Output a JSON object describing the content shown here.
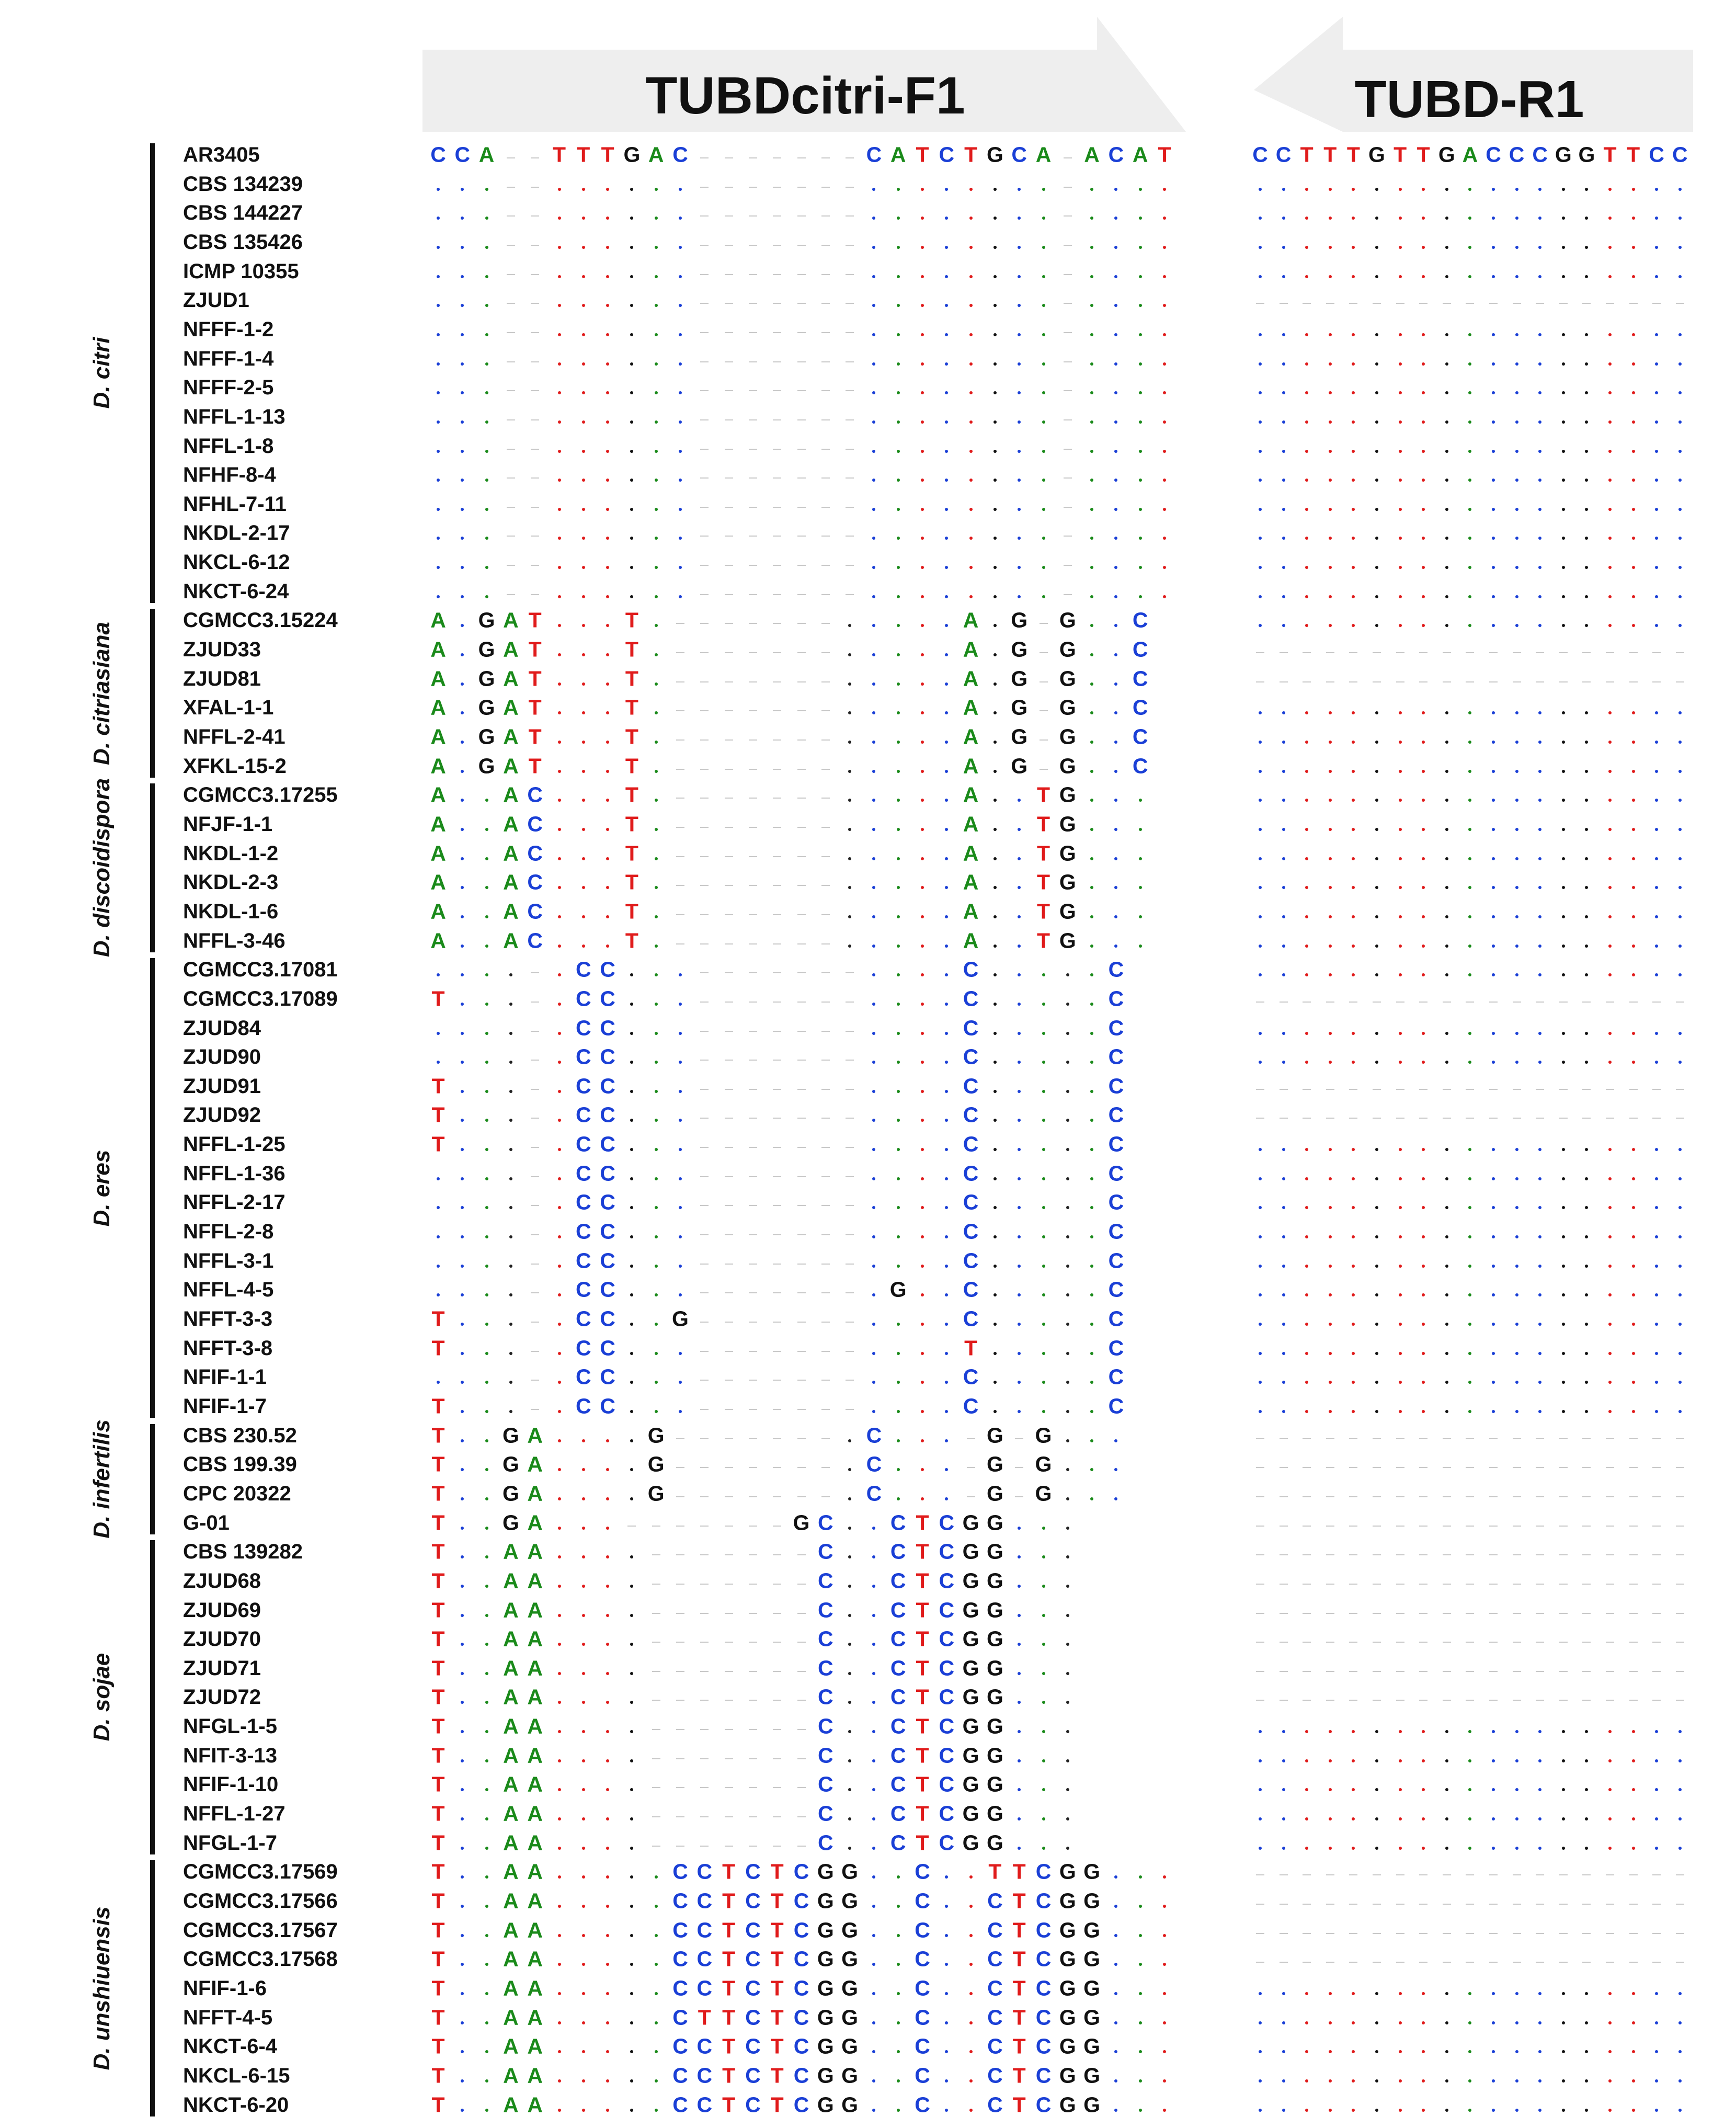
{
  "colors": {
    "A": "#1a8a1a",
    "C": "#1a3fd6",
    "G": "#111111",
    "T": "#e01b1b",
    "dot_black": "#222222",
    "gap": "#c8c8c8",
    "arrow_fill": "#eeeeee"
  },
  "primers": [
    {
      "name": "TUBDcitri-F1",
      "direction": "forward",
      "reference": "CCA--TTTGAC-------CATCTGCA-ACAT"
    },
    {
      "name": "TUBD-R1",
      "direction": "reverse",
      "reference": "CCTTTGTTGACCCGGTTCC"
    }
  ],
  "species_groups": [
    {
      "name": "D. citri",
      "strains": [
        {
          "id": "AR3405",
          "f1": "CCA--TTTGAC-------CATCTGCA-ACAT",
          "r1": "CCTTTGTTGACCCGGTTCC"
        },
        {
          "id": "CBS 134239",
          "f1": "...--......-------........-....",
          "r1": "..................."
        },
        {
          "id": "CBS 144227",
          "f1": "...--......-------........-....",
          "r1": "..................."
        },
        {
          "id": "CBS 135426",
          "f1": "...--......-------........-....",
          "r1": "..................."
        },
        {
          "id": "ICMP 10355",
          "f1": "...--......-------........-....",
          "r1": "..................."
        },
        {
          "id": "ZJUD1",
          "f1": "...--......-------........-....",
          "r1": "-------------------"
        },
        {
          "id": "NFFF-1-2",
          "f1": "...--......-------........-....",
          "r1": "..................."
        },
        {
          "id": "NFFF-1-4",
          "f1": "...--......-------........-....",
          "r1": "..................."
        },
        {
          "id": "NFFF-2-5",
          "f1": "...--......-------........-....",
          "r1": "..................."
        },
        {
          "id": "NFFL-1-13",
          "f1": "...--......-------........-....",
          "r1": "..................."
        },
        {
          "id": "NFFL-1-8",
          "f1": "...--......-------........-....",
          "r1": "..................."
        },
        {
          "id": "NFHF-8-4",
          "f1": "...--......-------........-....",
          "r1": "..................."
        },
        {
          "id": "NFHL-7-11",
          "f1": "...--......-------........-....",
          "r1": "..................."
        },
        {
          "id": "NKDL-2-17",
          "f1": "...--......-------........-....",
          "r1": "..................."
        },
        {
          "id": "NKCL-6-12",
          "f1": "...--......-------........-....",
          "r1": "..................."
        },
        {
          "id": "NKCT-6-24",
          "f1": "...--......-------........-....",
          "r1": "..................."
        }
      ]
    },
    {
      "name": "D. citriasiana",
      "strains": [
        {
          "id": "CGMCC3.15224",
          "f1": "A.GAT...T.-------.....A.G-G..C",
          "r1": "..................."
        },
        {
          "id": "ZJUD33",
          "f1": "A.GAT...T.-------.....A.G-G..C",
          "r1": "-------------------"
        },
        {
          "id": "ZJUD81",
          "f1": "A.GAT...T.-------.....A.G-G..C",
          "r1": "-------------------"
        },
        {
          "id": "XFAL-1-1",
          "f1": "A.GAT...T.-------.....A.G-G..C",
          "r1": "..................."
        },
        {
          "id": "NFFL-2-41",
          "f1": "A.GAT...T.-------.....A.G-G..C",
          "r1": "..................."
        },
        {
          "id": "XFKL-15-2",
          "f1": "A.GAT...T.-------.....A.G-G..C",
          "r1": "..................."
        }
      ]
    },
    {
      "name": "D. discoidispora",
      "strains": [
        {
          "id": "CGMCC3.17255",
          "f1": "A..AC...T.-------.....A..TG...",
          "r1": "..................."
        },
        {
          "id": "NFJF-1-1",
          "f1": "A..AC...T.-------.....A..TG...",
          "r1": "..................."
        },
        {
          "id": "NKDL-1-2",
          "f1": "A..AC...T.-------.....A..TG...",
          "r1": "..................."
        },
        {
          "id": "NKDL-2-3",
          "f1": "A..AC...T.-------.....A..TG...",
          "r1": "..................."
        },
        {
          "id": "NKDL-1-6",
          "f1": "A..AC...T.-------.....A..TG...",
          "r1": "..................."
        },
        {
          "id": "NFFL-3-46",
          "f1": "A..AC...T.-------.....A..TG...",
          "r1": "..................."
        }
      ]
    },
    {
      "name": "D. eres",
      "strains": [
        {
          "id": "CGMCC3.17081",
          "f1": "....-.CC...-------....C.....C",
          "r1": "..................."
        },
        {
          "id": "CGMCC3.17089",
          "f1": "T...-.CC...-------....C.....C",
          "r1": "-------------------"
        },
        {
          "id": "ZJUD84",
          "f1": "....-.CC...-------....C.....C",
          "r1": "..................."
        },
        {
          "id": "ZJUD90",
          "f1": "....-.CC...-------....C.....C",
          "r1": "..................."
        },
        {
          "id": "ZJUD91",
          "f1": "T...-.CC...-------....C.....C",
          "r1": "-------------------"
        },
        {
          "id": "ZJUD92",
          "f1": "T...-.CC...-------....C.....C",
          "r1": "-------------------"
        },
        {
          "id": "NFFL-1-25",
          "f1": "T...-.CC...-------....C.....C",
          "r1": "..................."
        },
        {
          "id": "NFFL-1-36",
          "f1": "....-.CC...-------....C.....C",
          "r1": "..................."
        },
        {
          "id": "NFFL-2-17",
          "f1": "....-.CC...-------....C.....C",
          "r1": "..................."
        },
        {
          "id": "NFFL-2-8",
          "f1": "....-.CC...-------....C.....C",
          "r1": "..................."
        },
        {
          "id": "NFFL-3-1",
          "f1": "....-.CC...-------....C.....C",
          "r1": "..................."
        },
        {
          "id": "NFFL-4-5",
          "f1": "....-.CC...-------.G..C.....C",
          "r1": "..................."
        },
        {
          "id": "NFFT-3-3",
          "f1": "T...-.CC..G-------....C.....C",
          "r1": "..................."
        },
        {
          "id": "NFFT-3-8",
          "f1": "T...-.CC...-------....T.....C",
          "r1": "..................."
        },
        {
          "id": "NFIF-1-1",
          "f1": "....-.CC...-------....C.....C",
          "r1": "..................."
        },
        {
          "id": "NFIF-1-7",
          "f1": "T...-.CC...-------....C.....C",
          "r1": "..................."
        }
      ]
    },
    {
      "name": "D. infertilis",
      "strains": [
        {
          "id": "CBS 230.52",
          "f1": "T..GA....G-------.C...-G-G...",
          "r1": "-------------------"
        },
        {
          "id": "CBS 199.39",
          "f1": "T..GA....G-------.C...-G-G...",
          "r1": "-------------------"
        },
        {
          "id": "CPC 20322",
          "f1": "T..GA....G-------.C...-G-G...",
          "r1": "-------------------"
        },
        {
          "id": "G-01",
          "f1": "T..GA...-------GC..CTCGG...",
          "r1": "-------------------"
        }
      ]
    },
    {
      "name": "D. sojae",
      "strains": [
        {
          "id": "CBS 139282",
          "f1": "T..AA....-------C..CTCGG...",
          "r1": "-------------------"
        },
        {
          "id": "ZJUD68",
          "f1": "T..AA....-------C..CTCGG...",
          "r1": "-------------------"
        },
        {
          "id": "ZJUD69",
          "f1": "T..AA....-------C..CTCGG...",
          "r1": "-------------------"
        },
        {
          "id": "ZJUD70",
          "f1": "T..AA....-------C..CTCGG...",
          "r1": "-------------------"
        },
        {
          "id": "ZJUD71",
          "f1": "T..AA....-------C..CTCGG...",
          "r1": "-------------------"
        },
        {
          "id": "ZJUD72",
          "f1": "T..AA....-------C..CTCGG...",
          "r1": "-------------------"
        },
        {
          "id": "NFGL-1-5",
          "f1": "T..AA....-------C..CTCGG...",
          "r1": "..................."
        },
        {
          "id": "NFIT-3-13",
          "f1": "T..AA....-------C..CTCGG...",
          "r1": "..................."
        },
        {
          "id": "NFIF-1-10",
          "f1": "T..AA....-------C..CTCGG...",
          "r1": "..................."
        },
        {
          "id": "NFFL-1-27",
          "f1": "T..AA....-------C..CTCGG...",
          "r1": "..................."
        },
        {
          "id": "NFGL-1-7",
          "f1": "T..AA....-------C..CTCGG...",
          "r1": "..................."
        }
      ]
    },
    {
      "name": "D. unshiuensis",
      "strains": [
        {
          "id": "CGMCC3.17569",
          "f1": "T..AA.....CCTCTCGG..C..TTCGG...",
          "r1": "-------------------"
        },
        {
          "id": "CGMCC3.17566",
          "f1": "T..AA.....CCTCTCGG..C..CTCGG...",
          "r1": "-------------------"
        },
        {
          "id": "CGMCC3.17567",
          "f1": "T..AA.....CCTCTCGG..C..CTCGG...",
          "r1": "-------------------"
        },
        {
          "id": "CGMCC3.17568",
          "f1": "T..AA.....CCTCTCGG..C..CTCGG...",
          "r1": "-------------------"
        },
        {
          "id": "NFIF-1-6",
          "f1": "T..AA.....CCTCTCGG..C..CTCGG...",
          "r1": "..................."
        },
        {
          "id": "NFFT-4-5",
          "f1": "T..AA.....CTTCTCGG..C..CTCGG...",
          "r1": "..................."
        },
        {
          "id": "NKCT-6-4",
          "f1": "T..AA.....CCTCTCGG..C..CTCGG...",
          "r1": "..................."
        },
        {
          "id": "NKCL-6-15",
          "f1": "T..AA.....CCTCTCGG..C..CTCGG...",
          "r1": "..................."
        },
        {
          "id": "NKCT-6-20",
          "f1": "T..AA.....CCTCTCGG..C..CTCGG...",
          "r1": "..................."
        }
      ]
    }
  ]
}
